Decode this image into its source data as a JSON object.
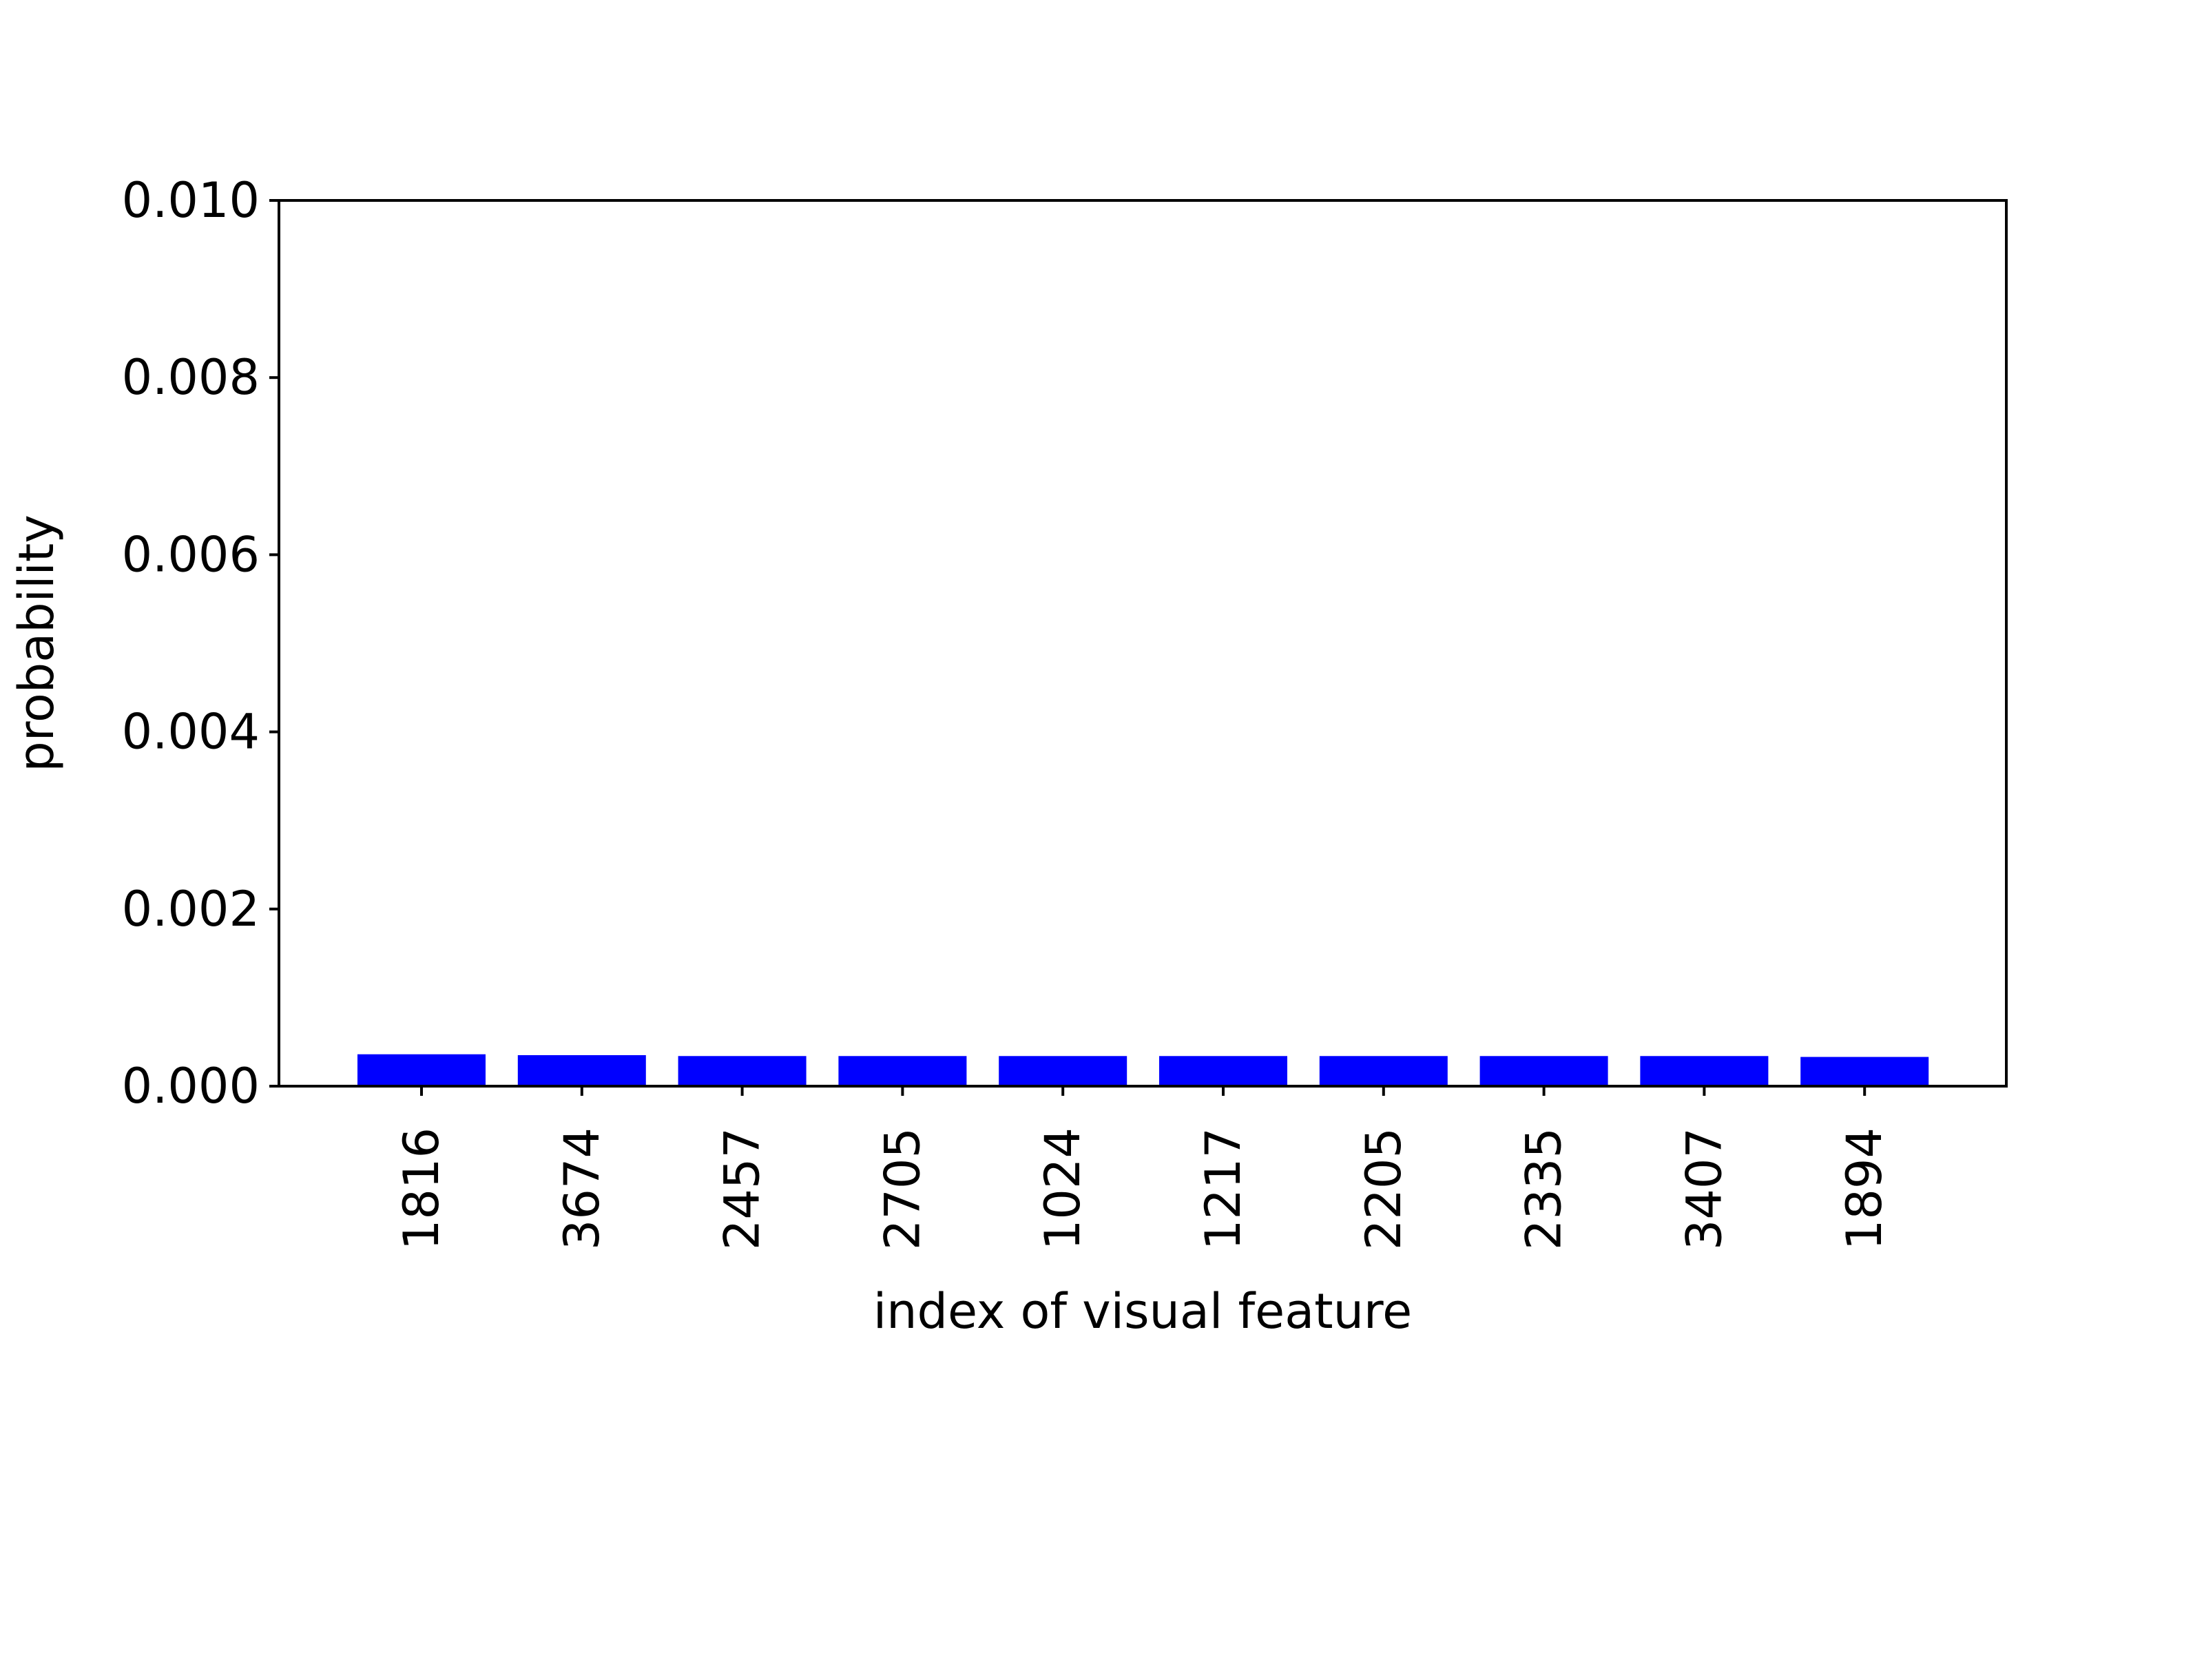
{
  "chart_data": {
    "type": "bar",
    "title": "",
    "xlabel": "index of visual feature",
    "ylabel": "probability",
    "categories": [
      "1816",
      "3674",
      "2457",
      "2705",
      "1024",
      "1217",
      "2205",
      "2335",
      "3407",
      "1894"
    ],
    "values": [
      0.00036,
      0.00035,
      0.00034,
      0.00034,
      0.00034,
      0.00034,
      0.00034,
      0.00034,
      0.00034,
      0.00033
    ],
    "ylim": [
      0,
      0.01
    ],
    "yticks": [
      "0.000",
      "0.002",
      "0.004",
      "0.006",
      "0.008",
      "0.010"
    ],
    "bar_color": "#0000ff",
    "grid": false
  }
}
